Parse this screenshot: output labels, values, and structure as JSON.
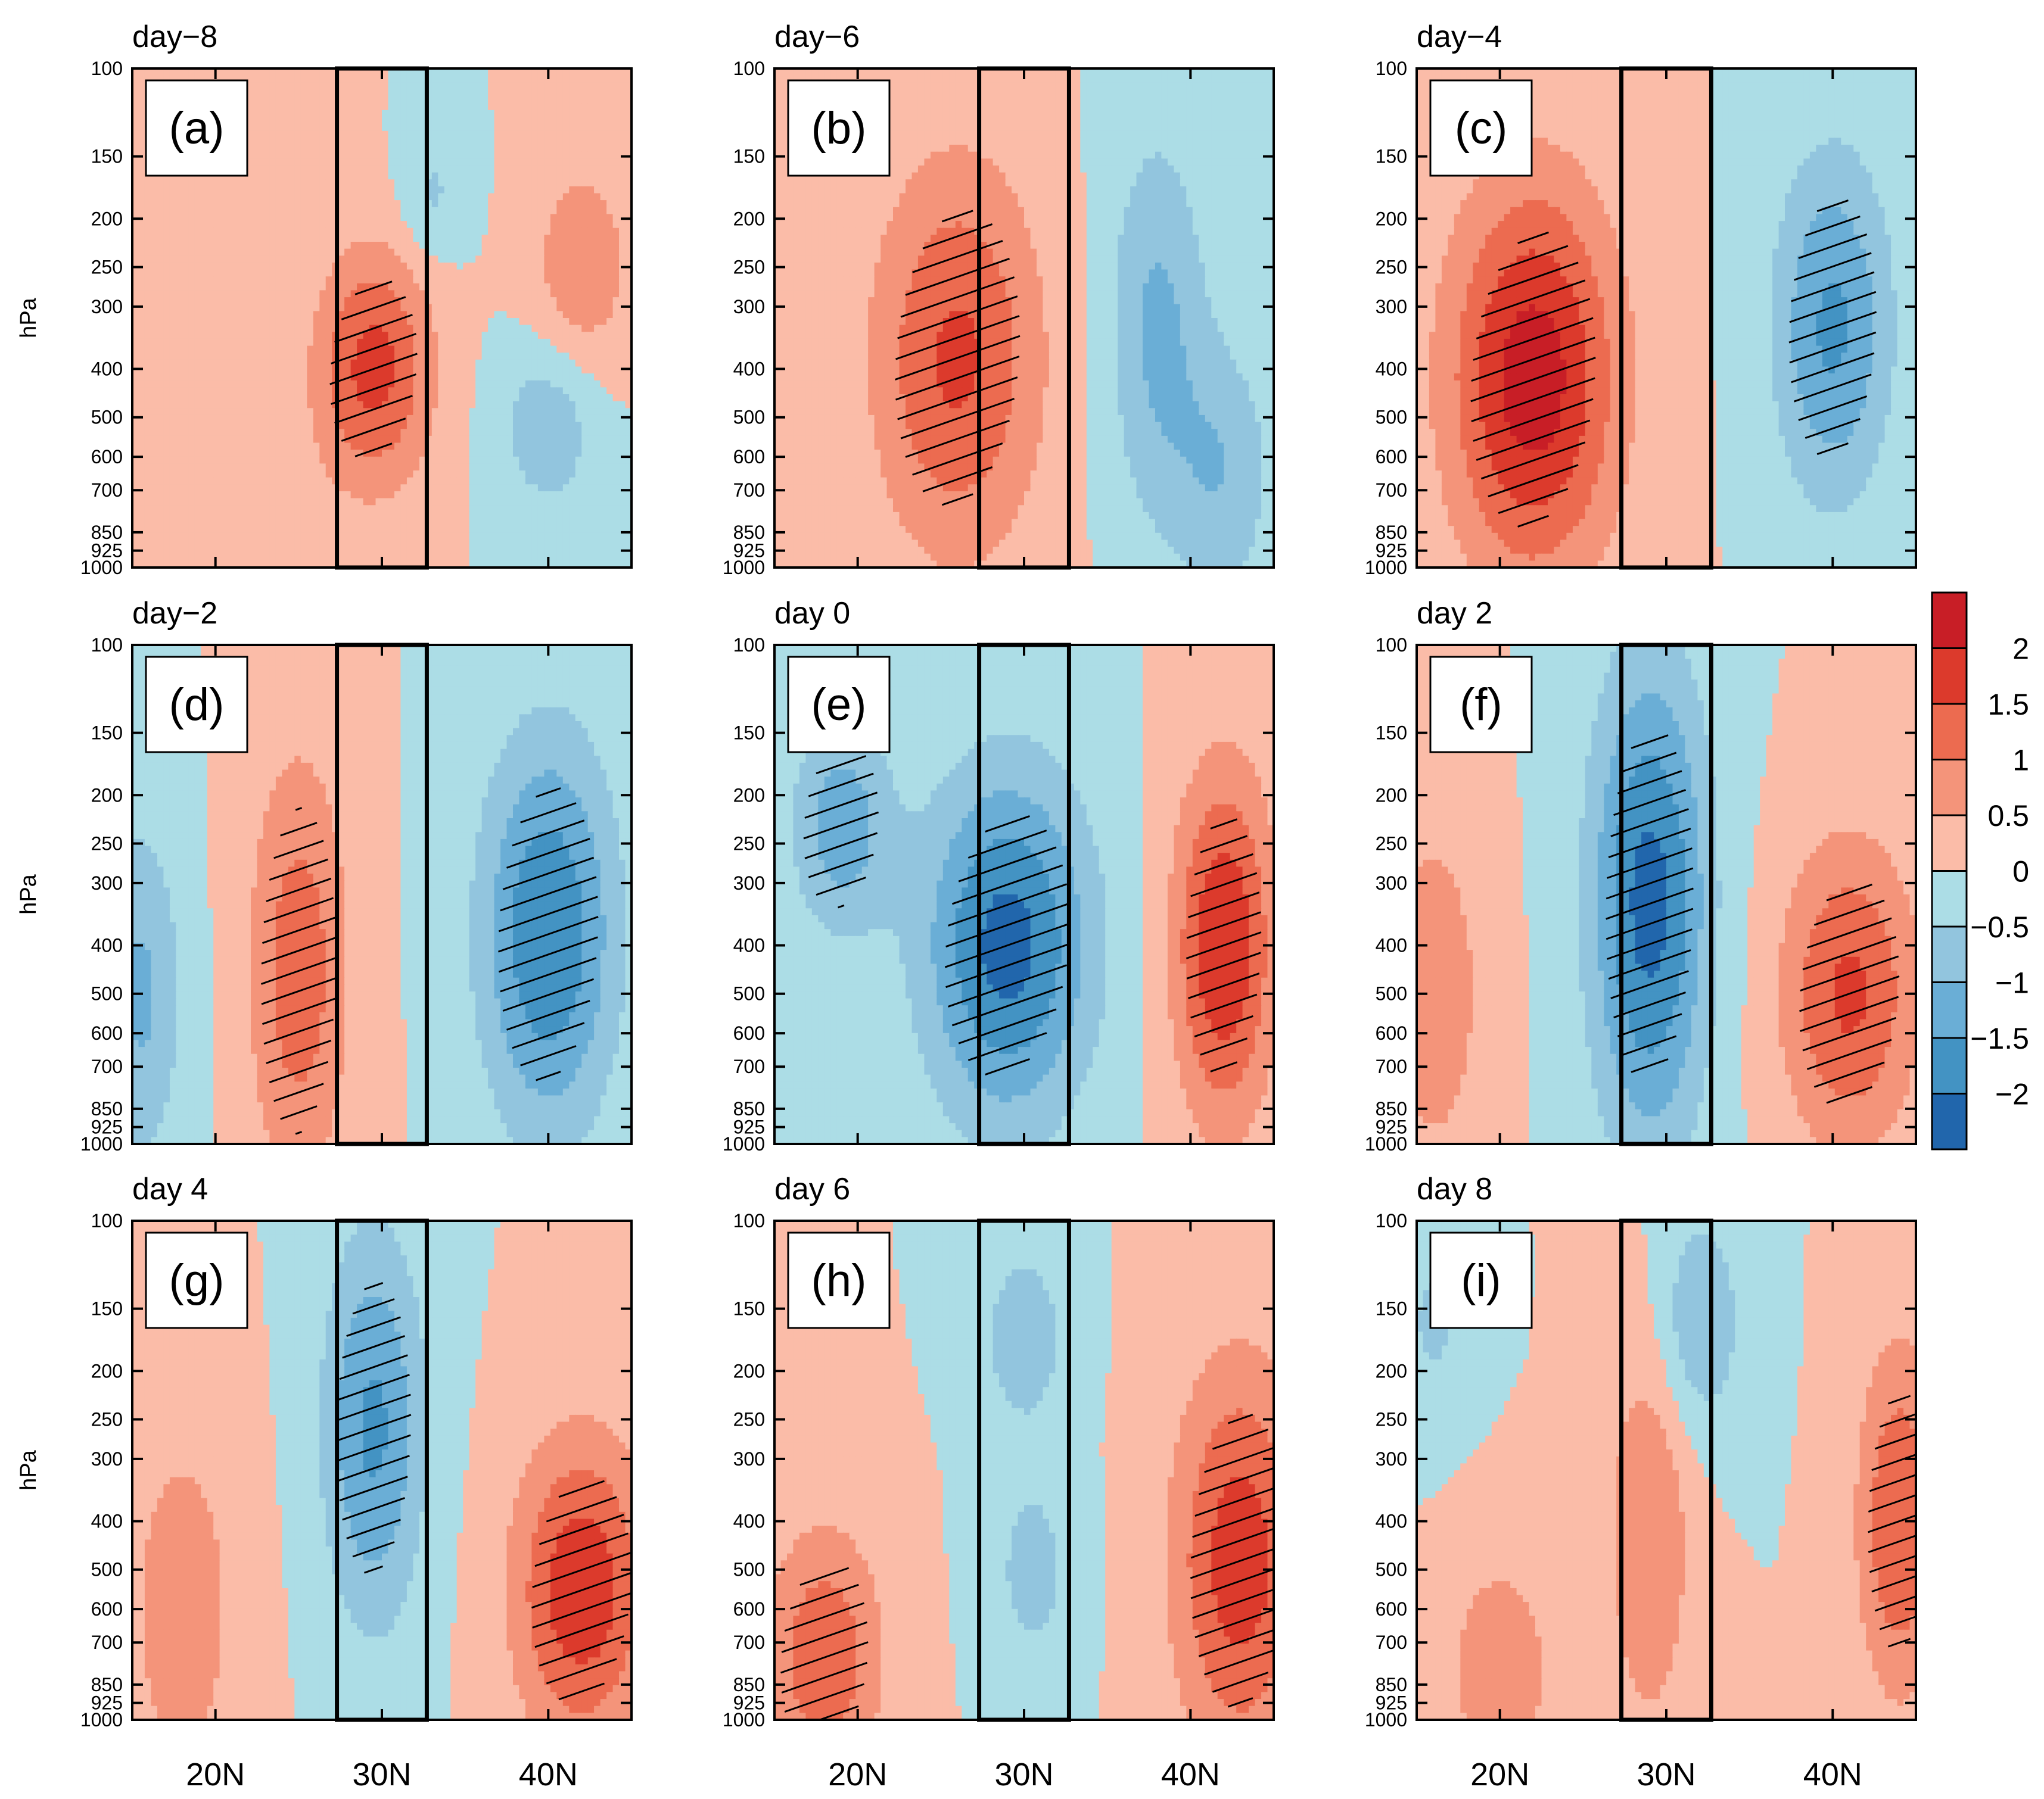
{
  "chart_data": {
    "type": "contour",
    "description_units": "filled-contour anomaly panels, latitude vs pressure",
    "ylabel": "hPa",
    "y_ticks": [
      "100",
      "150",
      "200",
      "250",
      "300",
      "400",
      "500",
      "600",
      "700",
      "850",
      "925",
      "1000"
    ],
    "y_tick_values": [
      100,
      150,
      200,
      250,
      300,
      400,
      500,
      600,
      700,
      850,
      925,
      1000
    ],
    "x_ticks": [
      "20N",
      "30N",
      "40N"
    ],
    "x_tick_values": [
      20,
      30,
      40
    ],
    "xlim": [
      15,
      45
    ],
    "ylim": [
      1000,
      100
    ],
    "box_latitudes": [
      27.3,
      32.7
    ],
    "colorbar": {
      "levels": [
        -2.5,
        -2,
        -1.5,
        -1,
        -0.5,
        0,
        0.5,
        1,
        1.5,
        2,
        2.5
      ],
      "colors": [
        "#2166ac",
        "#4393c3",
        "#6aaed6",
        "#92c5de",
        "#acdde6",
        "#fbbca8",
        "#f4947a",
        "#ec6b50",
        "#dc3a2c",
        "#c81e26"
      ],
      "tick_labels": [
        "2",
        "1.5",
        "1",
        "0.5",
        "0",
        "−0.5",
        "−1",
        "−1.5",
        "−2"
      ],
      "tick_values": [
        2,
        1.5,
        1,
        0.5,
        0,
        -0.5,
        -1,
        -1.5,
        -2
      ]
    },
    "panels": [
      {
        "title": "day−8",
        "label": "(a)",
        "centers": [
          {
            "lat": 29.5,
            "p": 400,
            "amp": 1.7,
            "wlat": 3.5,
            "wp": 0.55
          },
          {
            "lat": 42,
            "p": 250,
            "amp": 0.9,
            "wlat": 3,
            "wp": 0.5
          },
          {
            "lat": 40,
            "p": 520,
            "amp": -0.9,
            "wlat": 3,
            "wp": 0.4
          },
          {
            "lat": 33,
            "p": 180,
            "amp": -0.6,
            "wlat": 2,
            "wp": 0.3
          },
          {
            "lat": 22,
            "p": 800,
            "amp": 0.4,
            "wlat": 4,
            "wp": 0.4
          }
        ]
      },
      {
        "title": "day−6",
        "label": "(b)",
        "centers": [
          {
            "lat": 26,
            "p": 380,
            "amp": 1.6,
            "wlat": 5,
            "wp": 0.9
          },
          {
            "lat": 38,
            "p": 330,
            "amp": -1.1,
            "wlat": 3,
            "wp": 0.9
          },
          {
            "lat": 42,
            "p": 650,
            "amp": -0.9,
            "wlat": 3,
            "wp": 0.6
          }
        ]
      },
      {
        "title": "day−4",
        "label": "(c)",
        "centers": [
          {
            "lat": 22,
            "p": 420,
            "amp": 2.3,
            "wlat": 5,
            "wp": 0.9
          },
          {
            "lat": 40,
            "p": 330,
            "amp": -1.6,
            "wlat": 3.5,
            "wp": 0.8
          }
        ]
      },
      {
        "title": "day−2",
        "label": "(d)",
        "centers": [
          {
            "lat": 40,
            "p": 380,
            "amp": -2.0,
            "wlat": 4,
            "wp": 0.9
          },
          {
            "lat": 25,
            "p": 450,
            "amp": 1.3,
            "wlat": 3,
            "wp": 1.0
          },
          {
            "lat": 15.5,
            "p": 500,
            "amp": -1.1,
            "wlat": 2.5,
            "wp": 0.8
          }
        ]
      },
      {
        "title": "day 0",
        "label": "(e)",
        "centers": [
          {
            "lat": 29,
            "p": 400,
            "amp": -2.2,
            "wlat": 5,
            "wp": 0.8
          },
          {
            "lat": 42,
            "p": 400,
            "amp": 2.0,
            "wlat": 3,
            "wp": 0.8
          },
          {
            "lat": 19,
            "p": 230,
            "amp": -1.3,
            "wlat": 3,
            "wp": 0.5
          }
        ]
      },
      {
        "title": "day 2",
        "label": "(f)",
        "centers": [
          {
            "lat": 29,
            "p": 330,
            "amp": -2.2,
            "wlat": 3.5,
            "wp": 1.1
          },
          {
            "lat": 41,
            "p": 500,
            "amp": 1.6,
            "wlat": 4,
            "wp": 0.7
          },
          {
            "lat": 16,
            "p": 500,
            "amp": 0.9,
            "wlat": 3,
            "wp": 0.8
          }
        ]
      },
      {
        "title": "day 4",
        "label": "(g)",
        "centers": [
          {
            "lat": 29.5,
            "p": 260,
            "amp": -1.6,
            "wlat": 3,
            "wp": 0.9
          },
          {
            "lat": 42,
            "p": 550,
            "amp": 1.9,
            "wlat": 4,
            "wp": 0.7
          },
          {
            "lat": 18,
            "p": 600,
            "amp": 0.8,
            "wlat": 3.5,
            "wp": 0.9
          }
        ]
      },
      {
        "title": "day 6",
        "label": "(h)",
        "centers": [
          {
            "lat": 30,
            "p": 170,
            "amp": -0.9,
            "wlat": 2.5,
            "wp": 0.4
          },
          {
            "lat": 30.5,
            "p": 500,
            "amp": -0.7,
            "wlat": 2.5,
            "wp": 0.5
          },
          {
            "lat": 43,
            "p": 480,
            "amp": 1.8,
            "wlat": 4,
            "wp": 0.9
          },
          {
            "lat": 18,
            "p": 750,
            "amp": 1.4,
            "wlat": 3.5,
            "wp": 0.6
          }
        ]
      },
      {
        "title": "day 8",
        "label": "(i)",
        "centers": [
          {
            "lat": 32,
            "p": 160,
            "amp": -1.0,
            "wlat": 2.5,
            "wp": 0.5
          },
          {
            "lat": 29,
            "p": 430,
            "amp": 1.0,
            "wlat": 2.5,
            "wp": 0.9
          },
          {
            "lat": 44,
            "p": 400,
            "amp": 1.5,
            "wlat": 2.5,
            "wp": 0.8
          },
          {
            "lat": 20,
            "p": 800,
            "amp": 1.0,
            "wlat": 3,
            "wp": 0.5
          },
          {
            "lat": 16,
            "p": 160,
            "amp": -0.6,
            "wlat": 2,
            "wp": 0.4
          }
        ]
      }
    ]
  }
}
